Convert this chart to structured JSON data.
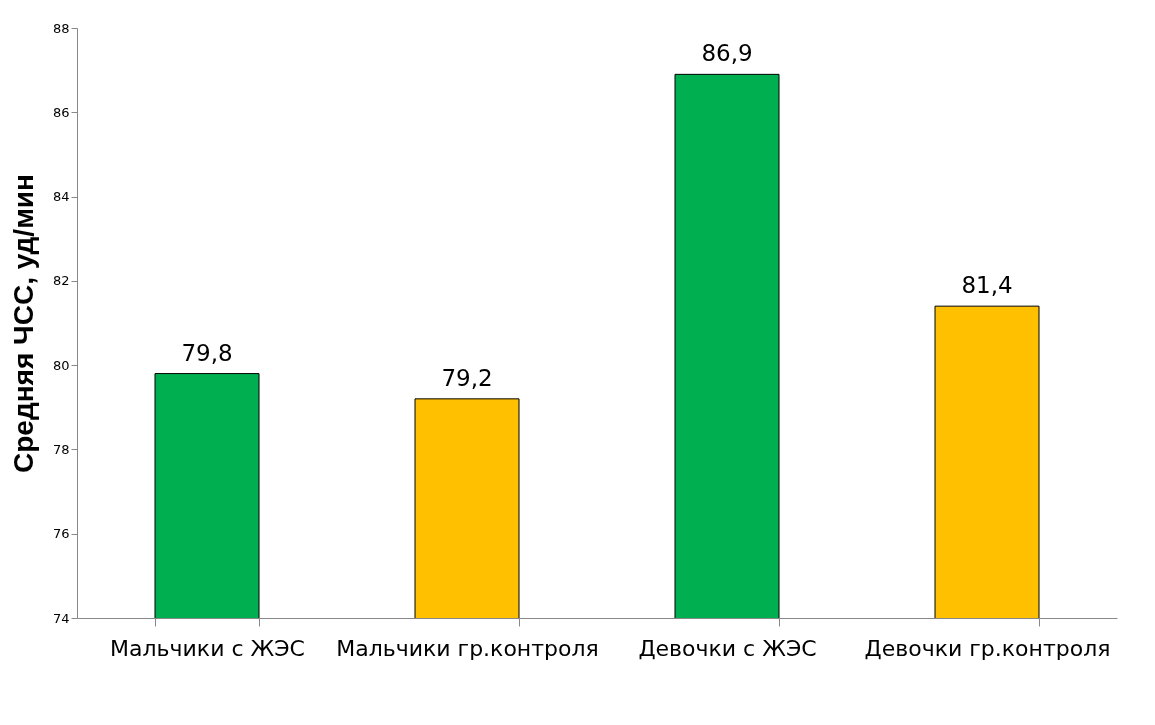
{
  "chart_data": {
    "type": "bar",
    "ylabel": "Средняя ЧСС, уд/мин",
    "categories": [
      "Мальчики с ЖЭС",
      "Мальчики\nгр.контроля",
      "Девочки с ЖЭС",
      "Девочки\nгр.контроля"
    ],
    "values": [
      79.8,
      79.2,
      86.9,
      81.4
    ],
    "value_labels": [
      "79,8",
      "79,2",
      "86,9",
      "81,4"
    ],
    "colors": [
      "#00b050",
      "#ffc000",
      "#00b050",
      "#ffc000"
    ],
    "ylim": [
      74,
      88
    ],
    "yticks": [
      74,
      76,
      78,
      80,
      82,
      84,
      86,
      88
    ],
    "grid": false
  }
}
